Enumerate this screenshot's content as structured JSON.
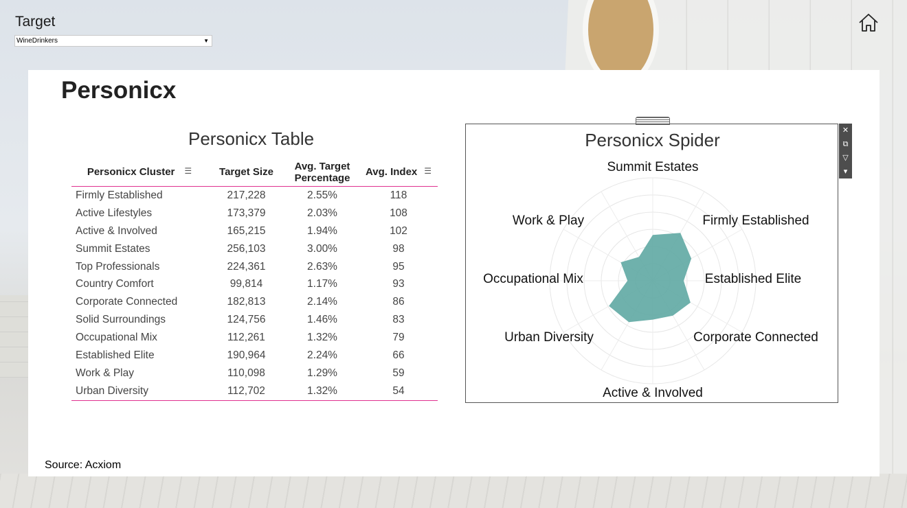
{
  "header": {
    "title": "Target",
    "dropdown_value": "WineDrinkers"
  },
  "page_title": "Personicx",
  "source": "Source: Acxiom",
  "table": {
    "title": "Personicx Table",
    "columns": [
      "Personicx Cluster",
      "Target Size",
      "Avg. Target Percentage",
      "Avg. Index"
    ],
    "rows": [
      [
        "Firmly Established",
        "217,228",
        "2.55%",
        "118"
      ],
      [
        "Active Lifestyles",
        "173,379",
        "2.03%",
        "108"
      ],
      [
        "Active & Involved",
        "165,215",
        "1.94%",
        "102"
      ],
      [
        "Summit Estates",
        "256,103",
        "3.00%",
        "98"
      ],
      [
        "Top Professionals",
        "224,361",
        "2.63%",
        "95"
      ],
      [
        "Country Comfort",
        "99,814",
        "1.17%",
        "93"
      ],
      [
        "Corporate Connected",
        "182,813",
        "2.14%",
        "86"
      ],
      [
        "Solid Surroundings",
        "124,756",
        "1.46%",
        "83"
      ],
      [
        "Occupational Mix",
        "112,261",
        "1.32%",
        "79"
      ],
      [
        "Established Elite",
        "190,964",
        "2.24%",
        "66"
      ],
      [
        "Work & Play",
        "110,098",
        "1.29%",
        "59"
      ],
      [
        "Urban Diversity",
        "112,702",
        "1.32%",
        "54"
      ]
    ]
  },
  "chart_data": {
    "type": "radar",
    "title": "Personicx Spider",
    "visible_axis_labels": [
      "Summit Estates",
      "Firmly Established",
      "Established Elite",
      "Corporate Connected",
      "Active & Involved",
      "Urban Diversity",
      "Occupational Mix",
      "Work & Play"
    ],
    "series": [
      {
        "color": "#5fa8a3",
        "categories": [
          "Summit Estates",
          "Firmly Established",
          "Top Professionals",
          "Established Elite",
          "Country Comfort",
          "Corporate Connected",
          "Solid Surroundings",
          "Active & Involved",
          "Active Lifestyles",
          "Urban Diversity",
          "Occupational Mix",
          "Work & Play"
        ],
        "values": [
          98,
          118,
          95,
          66,
          93,
          86,
          83,
          102,
          108,
          54,
          79,
          59
        ]
      }
    ],
    "rmax": 220,
    "rings": 6,
    "grid": true
  },
  "colors": {
    "accent": "#e0308f",
    "spider_fill": "#5fa8a3"
  },
  "icons": {
    "home": "home-icon",
    "close": "close-icon",
    "popout": "popout-icon",
    "filter": "filter-icon",
    "more": "chevron-down-icon"
  }
}
